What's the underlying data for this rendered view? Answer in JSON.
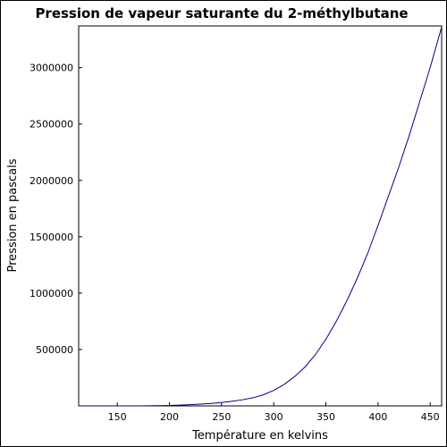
{
  "chart_data": {
    "type": "line",
    "title": "Pression de vapeur saturante du 2-méthylbutane",
    "xlabel": "Température en kelvins",
    "ylabel": "Pression en pascals",
    "xlim": [
      113,
      461
    ],
    "ylim": [
      0,
      3370000
    ],
    "xticks": [
      150,
      200,
      250,
      300,
      350,
      400,
      450
    ],
    "yticks": [
      500000,
      1000000,
      1500000,
      2000000,
      2500000,
      3000000
    ],
    "grid": false,
    "line_color": "#00008b",
    "series": [
      {
        "x": [
          113,
          130,
          150,
          170,
          190,
          200,
          210,
          220,
          230,
          240,
          250,
          260,
          270,
          280,
          290,
          300,
          310,
          320,
          330,
          340,
          350,
          360,
          370,
          380,
          390,
          400,
          410,
          420,
          430,
          440,
          450,
          461
        ],
        "y": [
          0,
          0,
          10,
          200,
          1500,
          3500,
          6500,
          10500,
          15500,
          22000,
          30000,
          41000,
          54000,
          72000,
          98000,
          137000,
          190000,
          260000,
          345000,
          455000,
          590000,
          750000,
          930000,
          1130000,
          1350000,
          1600000,
          1860000,
          2120000,
          2400000,
          2700000,
          3000000,
          3360000
        ]
      }
    ]
  }
}
